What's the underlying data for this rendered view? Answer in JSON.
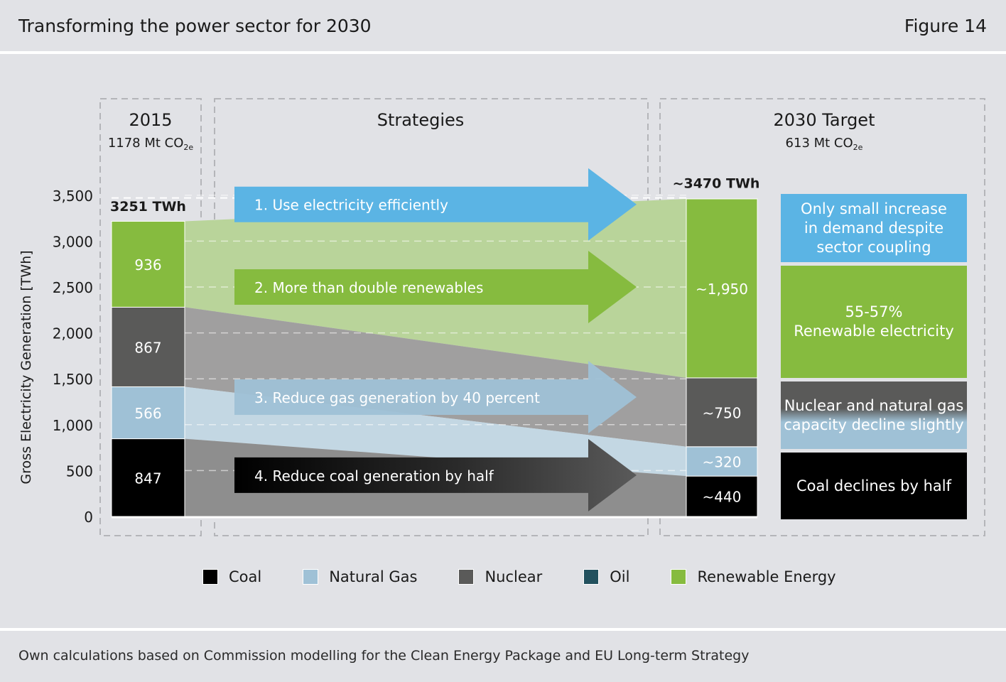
{
  "header": {
    "title": "Transforming the power sector for 2030",
    "figure": "Figure 14"
  },
  "source": "Own calculations based on Commission modelling for the Clean Energy Package and EU Long-term Strategy",
  "colors": {
    "coal": "#000000",
    "gas": "#9fc1d6",
    "nuclear": "#5a5a59",
    "oil": "#22515e",
    "renewable": "#86bb3f",
    "arrow_blue": "#5bb4e4",
    "background": "#e1e2e6"
  },
  "panels": {
    "y2015": {
      "title": "2015",
      "emissions": "1178 Mt CO",
      "emissions_sub": "2e",
      "total": "3251 TWh"
    },
    "strategies": {
      "title": "Strategies"
    },
    "y2030": {
      "title": "2030 Target",
      "emissions": "613 Mt CO",
      "emissions_sub": "2e",
      "total": "~3470 TWh"
    }
  },
  "chart_data": {
    "type": "bar",
    "ylabel": "Gross Electricity Generation [TWh]",
    "ylim": [
      0,
      3500
    ],
    "yticks": [
      {
        "value": 0,
        "label": "0"
      },
      {
        "value": 500,
        "label": "500"
      },
      {
        "value": 1000,
        "label": "1,000"
      },
      {
        "value": 1500,
        "label": "1,500"
      },
      {
        "value": 2000,
        "label": "2,000"
      },
      {
        "value": 2500,
        "label": "2,500"
      },
      {
        "value": 3000,
        "label": "3,000"
      },
      {
        "value": 3500,
        "label": "3,500"
      }
    ],
    "grid": true,
    "categories": [
      "2015",
      "2030 Target"
    ],
    "series": [
      {
        "name": "Coal",
        "key": "coal",
        "values": [
          847,
          440
        ],
        "labels": [
          "847",
          "~440"
        ]
      },
      {
        "name": "Natural Gas",
        "key": "gas",
        "values": [
          566,
          320
        ],
        "labels": [
          "566",
          "~320"
        ]
      },
      {
        "name": "Nuclear",
        "key": "nuclear",
        "values": [
          867,
          750
        ],
        "labels": [
          "867",
          "~750"
        ]
      },
      {
        "name": "Renewable Energy",
        "key": "renewable",
        "values": [
          936,
          1950
        ],
        "labels": [
          "936",
          "~1,950"
        ]
      }
    ],
    "totals": [
      3251,
      3470
    ],
    "legend": [
      {
        "name": "Coal",
        "key": "coal"
      },
      {
        "name": "Natural Gas",
        "key": "gas"
      },
      {
        "name": "Nuclear",
        "key": "nuclear"
      },
      {
        "name": "Oil",
        "key": "oil"
      },
      {
        "name": "Renewable Energy",
        "key": "renewable"
      }
    ],
    "legend_position": "bottom",
    "strategies": [
      {
        "text": "1. Use electricity efficiently",
        "color_key": "arrow_blue",
        "level": 3400
      },
      {
        "text": "2. More than double renewables",
        "color_key": "renewable",
        "level": 2500
      },
      {
        "text": "3. Reduce gas generation by 40 percent",
        "color_key": "gas",
        "level": 1300
      },
      {
        "text": "4. Reduce coal generation by half",
        "color_key": "coal",
        "level": 450
      }
    ],
    "notes": [
      {
        "lines": [
          "Only small increase",
          "in demand despite",
          "sector coupling"
        ],
        "color_key": "arrow_blue"
      },
      {
        "lines": [
          "55-57%",
          "Renewable electricity"
        ],
        "color_key": "renewable"
      },
      {
        "lines": [
          "Nuclear and natural gas",
          "capacity decline slightly"
        ],
        "color_key": "nuclear_gas"
      },
      {
        "lines": [
          "Coal declines by half"
        ],
        "color_key": "coal"
      }
    ]
  }
}
